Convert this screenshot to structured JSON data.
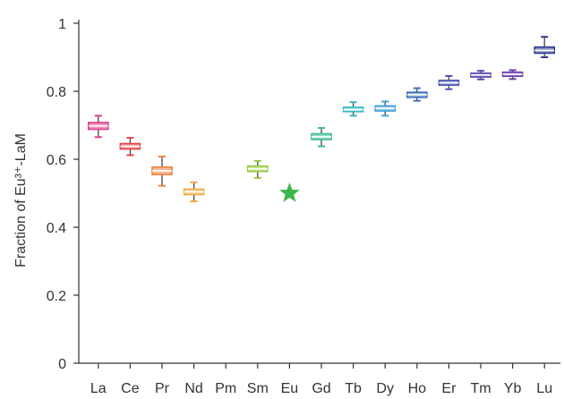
{
  "chart_data": {
    "type": "box",
    "categories": [
      "La",
      "Ce",
      "Pr",
      "Nd",
      "Pm",
      "Sm",
      "Eu",
      "Gd",
      "Tb",
      "Dy",
      "Ho",
      "Er",
      "Tm",
      "Yb",
      "Lu"
    ],
    "ylabel": "Fraction of Eu³⁺-LaM",
    "ylim": [
      0,
      1
    ],
    "yticks": [
      0,
      0.2,
      0.4,
      0.6,
      0.8,
      1
    ],
    "ytick_labels": [
      "0",
      "0.2",
      "0.4",
      "0.6",
      "0.8",
      "1"
    ],
    "grid": false,
    "boxes": [
      {
        "category": "La",
        "min": 0.665,
        "q1": 0.688,
        "median": 0.698,
        "q3": 0.708,
        "max": 0.728,
        "color": "#e23d8e"
      },
      {
        "category": "Ce",
        "min": 0.612,
        "q1": 0.63,
        "median": 0.638,
        "q3": 0.646,
        "max": 0.663,
        "color": "#e0464a"
      },
      {
        "category": "Pr",
        "min": 0.522,
        "q1": 0.555,
        "median": 0.566,
        "q3": 0.577,
        "max": 0.608,
        "color": "#ef8140"
      },
      {
        "category": "Nd",
        "min": 0.476,
        "q1": 0.496,
        "median": 0.504,
        "q3": 0.512,
        "max": 0.532,
        "color": "#f1a83e"
      },
      {
        "category": "Sm",
        "min": 0.545,
        "q1": 0.564,
        "median": 0.572,
        "q3": 0.58,
        "max": 0.595,
        "color": "#97c93d"
      },
      {
        "category": "Gd",
        "min": 0.638,
        "q1": 0.658,
        "median": 0.666,
        "q3": 0.675,
        "max": 0.692,
        "color": "#3dbb8f"
      },
      {
        "category": "Tb",
        "min": 0.728,
        "q1": 0.74,
        "median": 0.746,
        "q3": 0.753,
        "max": 0.768,
        "color": "#39b9c9"
      },
      {
        "category": "Dy",
        "min": 0.728,
        "q1": 0.742,
        "median": 0.75,
        "q3": 0.757,
        "max": 0.77,
        "color": "#3f9fd8"
      },
      {
        "category": "Ho",
        "min": 0.772,
        "q1": 0.782,
        "median": 0.79,
        "q3": 0.797,
        "max": 0.809,
        "color": "#3e6fbe"
      },
      {
        "category": "Er",
        "min": 0.806,
        "q1": 0.818,
        "median": 0.825,
        "q3": 0.832,
        "max": 0.845,
        "color": "#4a52b3"
      },
      {
        "category": "Tm",
        "min": 0.835,
        "q1": 0.842,
        "median": 0.848,
        "q3": 0.853,
        "max": 0.86,
        "color": "#5a43ad"
      },
      {
        "category": "Yb",
        "min": 0.836,
        "q1": 0.844,
        "median": 0.85,
        "q3": 0.856,
        "max": 0.862,
        "color": "#6b3fa8"
      },
      {
        "category": "Lu",
        "min": 0.9,
        "q1": 0.912,
        "median": 0.92,
        "q3": 0.93,
        "max": 0.96,
        "color": "#2b3a8f"
      }
    ],
    "markers": [
      {
        "category": "Eu",
        "y": 0.5,
        "shape": "star",
        "color": "#3db54a"
      }
    ]
  }
}
